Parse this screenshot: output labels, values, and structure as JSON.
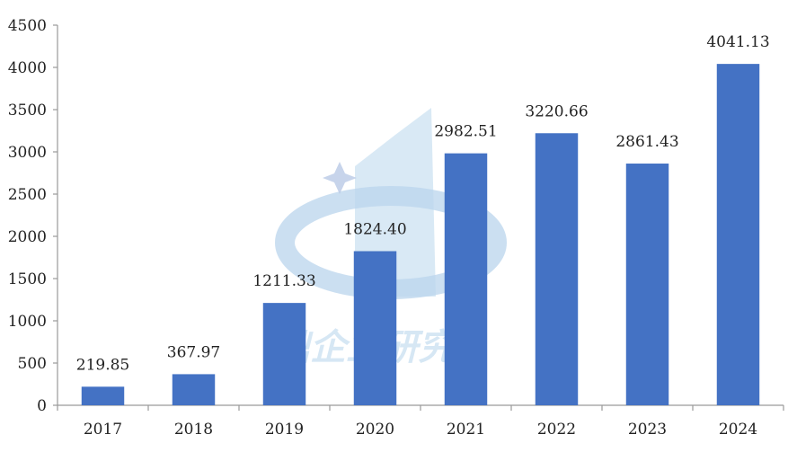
{
  "chart_data": {
    "type": "bar",
    "title": "",
    "xlabel": "",
    "ylabel": "",
    "categories": [
      "2017",
      "2018",
      "2019",
      "2020",
      "2021",
      "2022",
      "2023",
      "2024"
    ],
    "values": [
      219.85,
      367.97,
      1211.33,
      1824.4,
      2982.51,
      3220.66,
      2861.43,
      4041.13
    ],
    "data_labels": [
      "219.85",
      "367.97",
      "1211.33",
      "1824.40",
      "2982.51",
      "3220.66",
      "2861.43",
      "4041.13"
    ],
    "ylim": [
      0,
      4500
    ],
    "yticks": [
      0,
      500,
      1000,
      1500,
      2000,
      2500,
      3000,
      3500,
      4000,
      4500
    ],
    "grid": false,
    "bar_color": "#4472C4",
    "axis_color": "#9a9a9a"
  },
  "watermark": {
    "text": "鼎企业研究"
  }
}
